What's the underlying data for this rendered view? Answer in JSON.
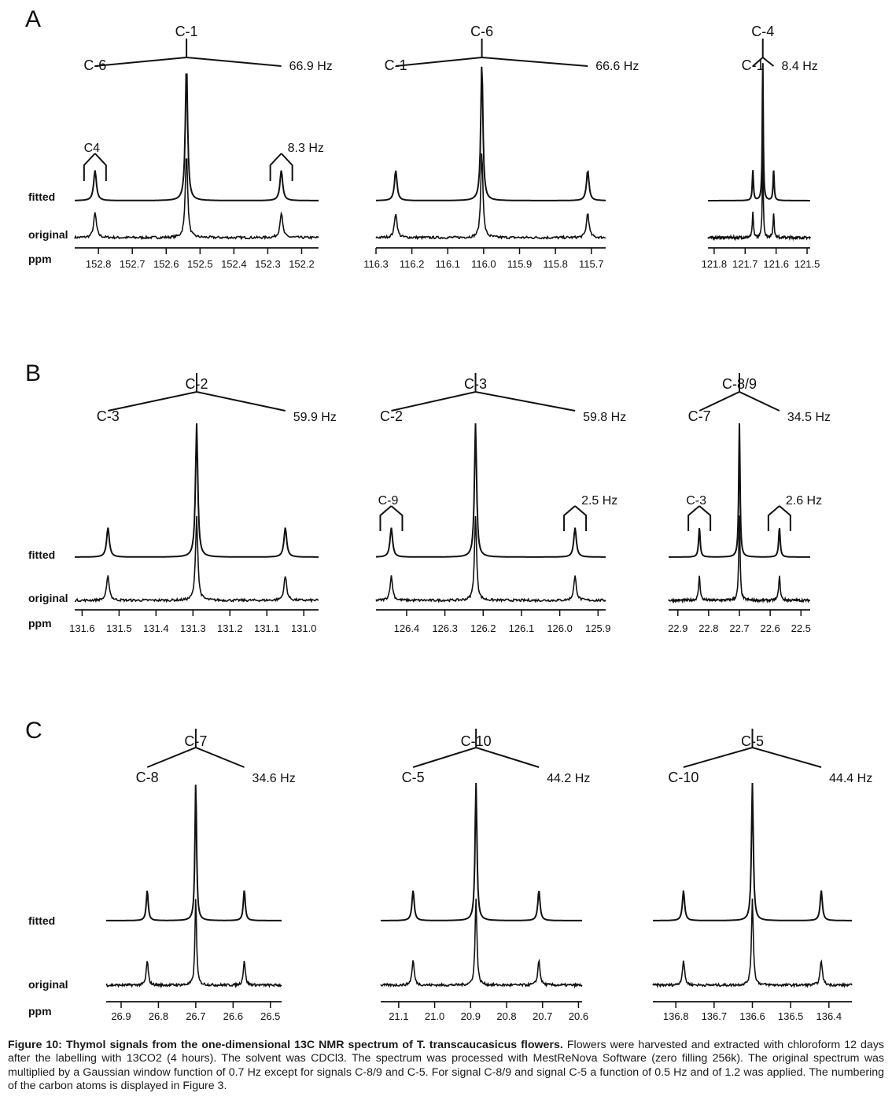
{
  "figure": {
    "rows": [
      {
        "letter": "A",
        "panels": [
          {
            "center": "C-1",
            "outer_left": "C-6",
            "outer_right": "66.9 Hz",
            "inner_left": "C4",
            "inner_right": "8.3 Hz",
            "axis_label": "ppm",
            "fitted_label": "fitted",
            "original_label": "original",
            "xlim": [
              152.87,
              152.15
            ],
            "ticks": [
              "152.8",
              "152.7",
              "152.6",
              "152.5",
              "152.4",
              "152.3",
              "152.2"
            ],
            "tick_values": [
              152.8,
              152.7,
              152.6,
              152.5,
              152.4,
              152.3,
              152.2
            ],
            "peaks": [
              152.54,
              152.81,
              152.26
            ],
            "triplet_spacing_ppm": 0.033
          },
          {
            "center": "C-6",
            "outer_left": "C-1",
            "outer_right": "66.6 Hz",
            "axis_label": "",
            "xlim": [
              116.3,
              115.66
            ],
            "ticks": [
              "116.3",
              "116.2",
              "116.1",
              "116.0",
              "115.9",
              "115.8",
              "115.7"
            ],
            "tick_values": [
              116.3,
              116.2,
              116.1,
              116.0,
              115.9,
              115.8,
              115.7
            ],
            "peaks": [
              116.005,
              116.245,
              115.71
            ]
          },
          {
            "center": "C-4",
            "outer_left": "C-1",
            "outer_right": "8.4 Hz",
            "axis_label": "",
            "xlim": [
              121.82,
              121.49
            ],
            "ticks": [
              "121.8",
              "121.7",
              "121.6",
              "121.5"
            ],
            "tick_values": [
              121.8,
              121.7,
              121.6,
              121.5
            ],
            "peaks": [
              121.643,
              121.675,
              121.608
            ]
          }
        ]
      },
      {
        "letter": "B",
        "panels": [
          {
            "center": "C-2",
            "outer_left": "C-3",
            "outer_right": "59.9 Hz",
            "axis_label": "ppm",
            "fitted_label": "fitted",
            "original_label": "original",
            "xlim": [
              131.62,
              130.96
            ],
            "ticks": [
              "131.6",
              "131.5",
              "131.4",
              "131.3",
              "131.2",
              "131.1",
              "131.0"
            ],
            "tick_values": [
              131.6,
              131.5,
              131.4,
              131.3,
              131.2,
              131.1,
              131.0
            ],
            "peaks": [
              131.29,
              131.53,
              131.05
            ]
          },
          {
            "center": "C-3",
            "outer_left": "C-2",
            "outer_right": "59.8 Hz",
            "inner_left": "C-9",
            "inner_right": "2.5 Hz",
            "axis_label": "",
            "xlim": [
              126.48,
              125.88
            ],
            "ticks": [
              "126.4",
              "126.3",
              "126.2",
              "126.1",
              "126.0",
              "125.9"
            ],
            "tick_values": [
              126.4,
              126.3,
              126.2,
              126.1,
              126.0,
              125.9
            ],
            "peaks": [
              126.22,
              126.44,
              125.96
            ]
          },
          {
            "center": "C-8/9",
            "outer_left": "C-7",
            "outer_right": "34.5 Hz",
            "inner_left": "C-3",
            "inner_right": "2.6 Hz",
            "axis_label": "",
            "xlim": [
              22.93,
              22.47
            ],
            "ticks": [
              "22.9",
              "22.8",
              "22.7",
              "22.6",
              "22.5"
            ],
            "tick_values": [
              22.9,
              22.8,
              22.7,
              22.6,
              22.5
            ],
            "peaks": [
              22.7,
              22.83,
              22.57
            ]
          }
        ]
      },
      {
        "letter": "C",
        "panels": [
          {
            "center": "C-7",
            "outer_left": "C-8",
            "outer_right": "34.6 Hz",
            "axis_label": "ppm",
            "fitted_label": "fitted",
            "original_label": "original",
            "xlim": [
              26.94,
              26.47
            ],
            "ticks": [
              "26.9",
              "26.8",
              "26.7",
              "26.6",
              "26.5"
            ],
            "tick_values": [
              26.9,
              26.8,
              26.7,
              26.6,
              26.5
            ],
            "peaks": [
              26.7,
              26.83,
              26.57
            ]
          },
          {
            "center": "C-10",
            "outer_left": "C-5",
            "outer_right": "44.2 Hz",
            "axis_label": "",
            "xlim": [
              21.15,
              20.59
            ],
            "ticks": [
              "21.1",
              "21.0",
              "20.9",
              "20.8",
              "20.7",
              "20.6"
            ],
            "tick_values": [
              21.1,
              21.0,
              20.9,
              20.8,
              20.7,
              20.6
            ],
            "peaks": [
              20.885,
              21.06,
              20.71
            ]
          },
          {
            "center": "C-5",
            "outer_left": "C-10",
            "outer_right": "44.4 Hz",
            "axis_label": "",
            "xlim": [
              136.86,
              136.34
            ],
            "ticks": [
              "136.8",
              "136.7",
              "136.6",
              "136.5",
              "136.4"
            ],
            "tick_values": [
              136.8,
              136.7,
              136.6,
              136.5,
              136.4
            ],
            "peaks": [
              136.6,
              136.78,
              136.42
            ]
          }
        ]
      }
    ]
  },
  "caption": {
    "bold_part": "Figure 10: Thymol signals from the one-dimensional 13C NMR spectrum of T. transcaucasicus flowers.",
    "text": "Flowers were harvested and extracted with chloroform 12 days after the labelling with 13CO2 (4 hours). The solvent was CDCl3. The spectrum was processed with MestReNova Software (zero filling 256k). The original spectrum was multiplied by a Gaussian window function of 0.7 Hz except for signals C-8/9 and C-5. For signal C-8/9 and signal C-5 a function of 0.5 Hz and of 1.2 was applied. The numbering of the carbon atoms is displayed in Figure 3."
  }
}
